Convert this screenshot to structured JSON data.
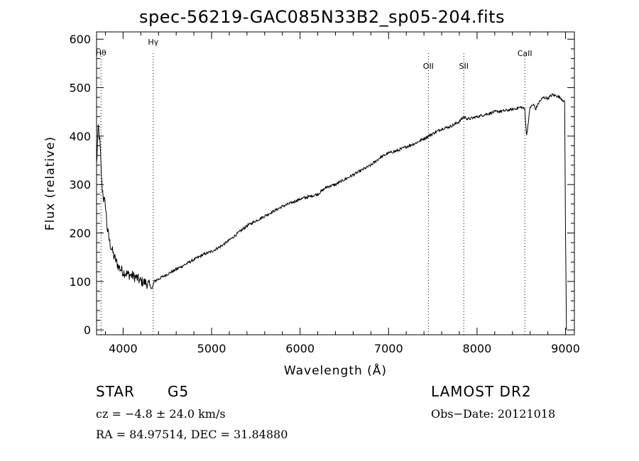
{
  "chart_data": {
    "type": "line",
    "title": "spec-56219-GAC085N33B2_sp05-204.fits",
    "xlabel": "Wavelength (Å)",
    "ylabel": "Flux (relative)",
    "xlim": [
      3700,
      9100
    ],
    "ylim": [
      -10,
      615
    ],
    "x_ticks": [
      4000,
      5000,
      6000,
      7000,
      8000,
      9000
    ],
    "y_ticks": [
      0,
      100,
      200,
      300,
      400,
      500,
      600
    ],
    "grid": false,
    "series": [
      {
        "x": [
          3700,
          3720,
          3740,
          3760,
          3780,
          3800,
          3820,
          3850,
          3900,
          3950,
          4000,
          4050,
          4100,
          4150,
          4200,
          4250,
          4300,
          4330,
          4350,
          4400,
          4500,
          4600,
          4700,
          4800,
          4900,
          5000,
          5100,
          5200,
          5300,
          5400,
          5500,
          5600,
          5700,
          5800,
          5900,
          6000,
          6100,
          6200,
          6300,
          6400,
          6500,
          6600,
          6700,
          6800,
          6900,
          7000,
          7100,
          7200,
          7300,
          7400,
          7500,
          7600,
          7700,
          7800,
          7850,
          7900,
          8000,
          8100,
          8200,
          8300,
          8400,
          8500,
          8540,
          8560,
          8600,
          8640,
          8660,
          8700,
          8750,
          8800,
          8850,
          8900,
          8950,
          8990,
          9000,
          9010
        ],
        "y": [
          340,
          420,
          380,
          300,
          270,
          260,
          210,
          180,
          150,
          130,
          120,
          115,
          112,
          108,
          100,
          98,
          92,
          85,
          100,
          105,
          115,
          125,
          135,
          145,
          155,
          162,
          172,
          185,
          200,
          215,
          225,
          235,
          245,
          255,
          262,
          270,
          275,
          280,
          295,
          300,
          310,
          320,
          330,
          340,
          355,
          365,
          370,
          378,
          385,
          395,
          405,
          415,
          420,
          430,
          440,
          435,
          440,
          445,
          450,
          452,
          455,
          460,
          455,
          400,
          460,
          465,
          455,
          470,
          480,
          478,
          485,
          483,
          478,
          470,
          200,
          0
        ]
      }
    ],
    "annotations": [
      {
        "label": "Hθ",
        "x": 3750
      },
      {
        "label": "Hγ",
        "x": 4340
      },
      {
        "label": "OII",
        "x": 7450
      },
      {
        "label": "SII",
        "x": 7850
      },
      {
        "label": "CaII",
        "x": 8540
      }
    ]
  },
  "info": {
    "object_class": "STAR",
    "subclass": "G5",
    "survey": "LAMOST DR2",
    "cz": "cz = −4.8 ± 24.0 km/s",
    "obs_date": "Obs−Date: 20121018",
    "coords": "RA =  84.97514, DEC =  31.84880"
  }
}
